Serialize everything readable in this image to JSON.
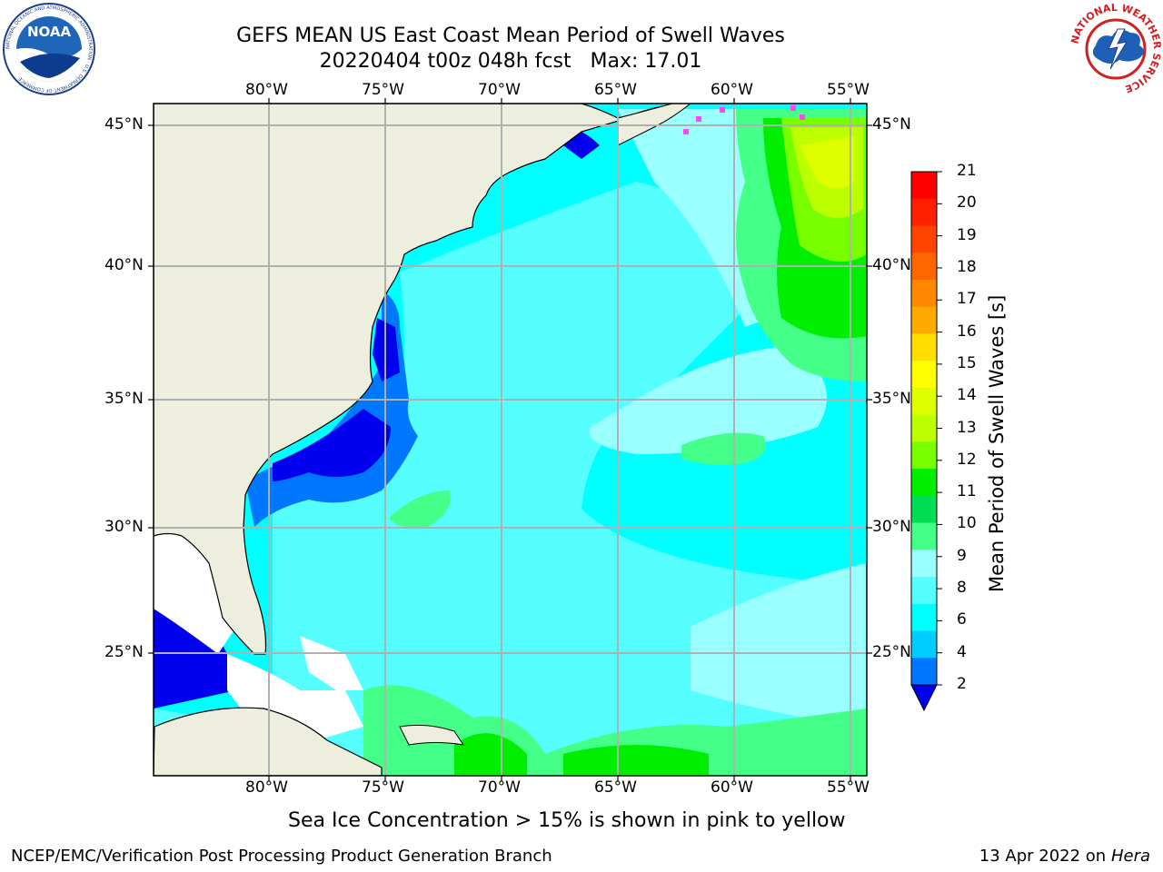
{
  "header": {
    "title_line1": "GEFS MEAN US East Coast Mean Period of Swell Waves",
    "title_line2": "20220404 t00z 048h fcst   Max: 17.01"
  },
  "logos": {
    "left": "NOAA",
    "left_ring_text": "NATIONAL OCEANIC AND ATMOSPHERIC ADMINISTRATION · U.S. DEPARTMENT OF COMMERCE",
    "right_ring_text": "NATIONAL WEATHER SERVICE"
  },
  "map": {
    "lon_labels": [
      "80°W",
      "75°W",
      "70°W",
      "65°W",
      "60°W",
      "55°W"
    ],
    "lat_labels": [
      "45°N",
      "40°N",
      "35°N",
      "30°N",
      "25°N"
    ],
    "land_color": "#eeeedf",
    "nodata_color": "#ffffff",
    "grid_color": "#b0b0b0"
  },
  "colorbar": {
    "title": "Mean Period of Swell Waves [s]",
    "ticks": [
      "21",
      "20",
      "19",
      "18",
      "17",
      "16",
      "15",
      "14",
      "13",
      "12",
      "11",
      "10",
      "9",
      "8",
      "6",
      "4",
      "2"
    ],
    "colors_top_to_bottom": [
      "#ff0000",
      "#ff2000",
      "#ff4400",
      "#ff6600",
      "#ff8800",
      "#ffaa00",
      "#ffdd00",
      "#ffff00",
      "#ddff00",
      "#bbff00",
      "#77ff00",
      "#00ee00",
      "#00dd55",
      "#44ff88",
      "#99ffff",
      "#55ffff",
      "#00ffff",
      "#00ccff",
      "#0077ff"
    ],
    "extend_color": "#0000ee"
  },
  "note": "Sea Ice Concentration > 15% is shown in pink to yellow",
  "footer": {
    "left": "NCEP/EMC/Verification Post Processing Product Generation Branch",
    "right_date": "13 Apr 2022 on ",
    "right_host": "Hera"
  }
}
